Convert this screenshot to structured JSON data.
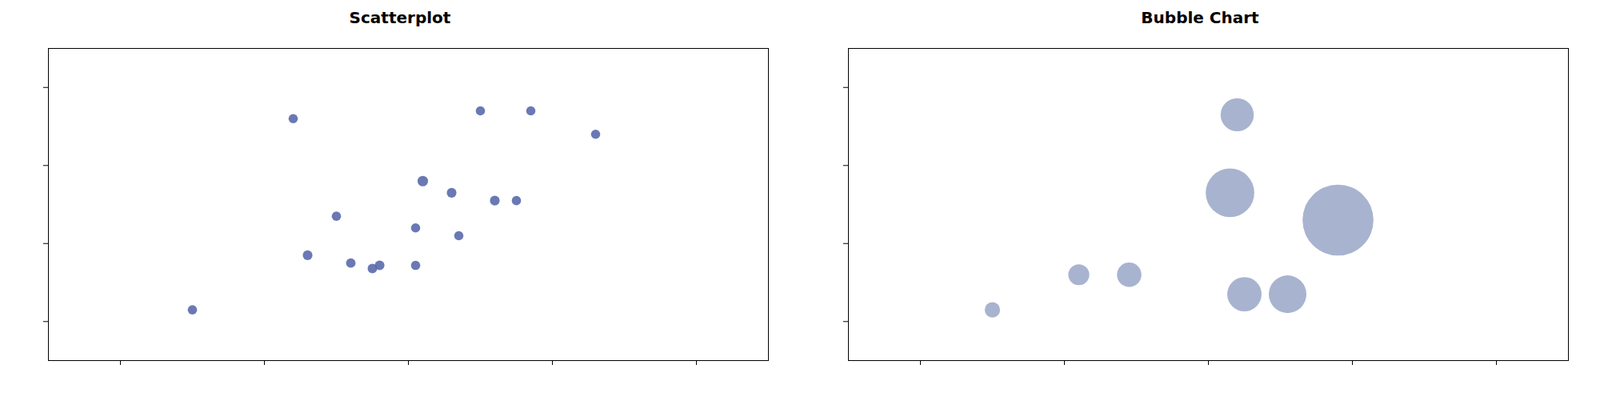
{
  "chart_data": [
    {
      "type": "scatter",
      "title": "Scatterplot",
      "color": "#5566aa",
      "x": [
        2.2,
        3.5,
        3.85,
        4.3,
        3.1,
        3.3,
        3.6,
        3.75,
        2.5,
        3.05,
        3.35,
        2.3,
        2.6,
        2.8,
        3.05,
        2.75,
        1.5
      ],
      "y": [
        3.6,
        3.7,
        3.7,
        3.4,
        2.8,
        2.65,
        2.55,
        2.55,
        2.35,
        2.2,
        2.1,
        1.85,
        1.75,
        1.72,
        1.72,
        1.68,
        1.15
      ],
      "sizes": [
        55,
        55,
        55,
        55,
        70,
        60,
        60,
        55,
        55,
        55,
        55,
        60,
        58,
        60,
        55,
        58,
        55
      ],
      "xlim": [
        0.5,
        5.5
      ],
      "ylim": [
        0.5,
        4.5
      ],
      "xticks": [
        1,
        2,
        3,
        4,
        5
      ],
      "yticks": [
        1,
        2,
        3,
        4
      ],
      "tick_labels": false,
      "grid": false
    },
    {
      "type": "bubble",
      "title": "Bubble Chart",
      "color": "#7a8ab5",
      "x": [
        3.2,
        3.15,
        3.9,
        2.1,
        2.45,
        3.25,
        3.55,
        1.5
      ],
      "y": [
        3.65,
        2.65,
        2.3,
        1.6,
        1.6,
        1.35,
        1.35,
        1.15
      ],
      "sizes": [
        700,
        1500,
        3200,
        280,
        380,
        750,
        900,
        150
      ],
      "xlim": [
        0.5,
        5.5
      ],
      "ylim": [
        0.5,
        4.5
      ],
      "xticks": [
        1,
        2,
        3,
        4,
        5
      ],
      "yticks": [
        1,
        2,
        3,
        4
      ],
      "tick_labels": false,
      "grid": false
    }
  ]
}
